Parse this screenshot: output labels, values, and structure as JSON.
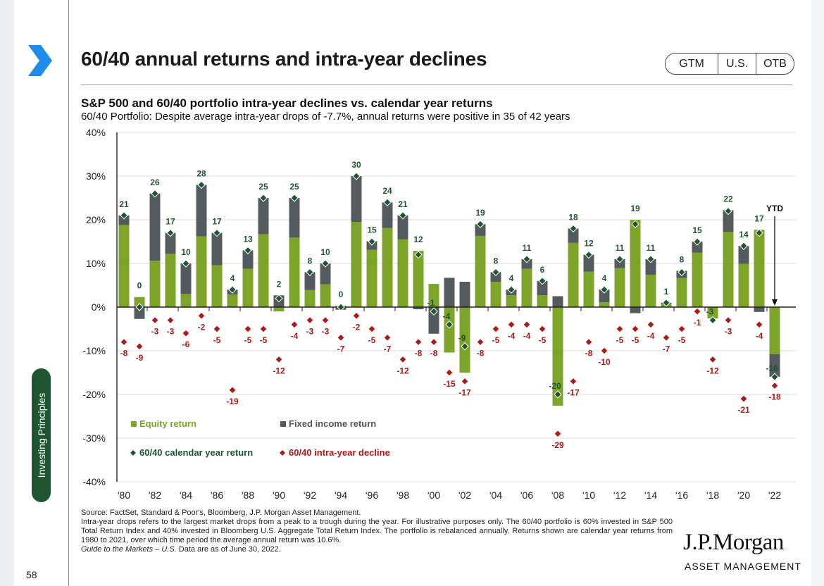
{
  "header": {
    "title": "60/40 annual returns and intra-year declines",
    "pills": [
      "GTM",
      "U.S.",
      "OTB"
    ]
  },
  "sidebar": {
    "tab_label": "Investing Principles",
    "page_number": "58"
  },
  "colors": {
    "equity": "#7ba428",
    "fixed_income": "#555a5e",
    "calendar": "#1e5631",
    "decline": "#b01818",
    "accent": "#1f8ceb"
  },
  "chart_data": {
    "type": "bar",
    "title": "S&P 500 and 60/40 portfolio intra-year declines vs. calendar year returns",
    "subtitle": "60/40 Portfolio: Despite average intra-year drops of -7.7%, annual returns were positive in 35 of 42 years",
    "ylim": [
      -40,
      40
    ],
    "yticks": [
      "-40%",
      "-30%",
      "-20%",
      "-10%",
      "0%",
      "10%",
      "20%",
      "30%",
      "40%"
    ],
    "xtick_labels": [
      "'80",
      "'82",
      "'84",
      "'86",
      "'88",
      "'90",
      "'92",
      "'94",
      "'96",
      "'98",
      "'00",
      "'02",
      "'04",
      "'06",
      "'08",
      "'10",
      "'12",
      "'14",
      "'16",
      "'18",
      "'20",
      "'22"
    ],
    "years": [
      1980,
      1981,
      1982,
      1983,
      1984,
      1985,
      1986,
      1987,
      1988,
      1989,
      1990,
      1991,
      1992,
      1993,
      1994,
      1995,
      1996,
      1997,
      1998,
      1999,
      2000,
      2001,
      2002,
      2003,
      2004,
      2005,
      2006,
      2007,
      2008,
      2009,
      2010,
      2011,
      2012,
      2013,
      2014,
      2015,
      2016,
      2017,
      2018,
      2019,
      2020,
      2021,
      2022
    ],
    "series": [
      {
        "name": "Equity return",
        "type": "bar",
        "values": [
          18.8,
          2.3,
          10.6,
          12.2,
          3.0,
          16.2,
          9.6,
          2.9,
          8.8,
          16.7,
          -1.0,
          15.9,
          3.9,
          5.2,
          0.3,
          19.5,
          13.1,
          18.1,
          15.5,
          12.9,
          5.3,
          -10.4,
          -15.0,
          16.3,
          5.8,
          2.7,
          8.8,
          2.7,
          -22.6,
          14.7,
          8.1,
          1.1,
          8.9,
          20.0,
          7.4,
          0.8,
          6.7,
          12.5,
          -2.6,
          17.2,
          9.9,
          17.7,
          -10.8
        ]
      },
      {
        "name": "Fixed income return",
        "type": "bar",
        "values": [
          2.2,
          -2.7,
          15.4,
          4.8,
          7.0,
          11.8,
          7.4,
          1.1,
          4.2,
          8.3,
          2.7,
          9.1,
          4.1,
          4.8,
          -0.6,
          10.5,
          2.0,
          5.9,
          5.5,
          -0.5,
          -6.1,
          6.7,
          5.8,
          2.7,
          2.2,
          1.3,
          2.2,
          3.3,
          2.5,
          3.3,
          3.9,
          2.9,
          2.1,
          -1.4,
          3.6,
          0.2,
          1.6,
          2.5,
          0.0,
          5.0,
          4.1,
          -1.1,
          -5.2
        ]
      },
      {
        "name": "60/40 calendar year return",
        "type": "scatter",
        "values": [
          21,
          0,
          26,
          17,
          10,
          28,
          17,
          4,
          13,
          25,
          2,
          25,
          8,
          10,
          0,
          30,
          15,
          24,
          21,
          12,
          -1,
          -4,
          -9,
          19,
          8,
          4,
          11,
          6,
          -20,
          18,
          12,
          4,
          11,
          19,
          11,
          1,
          8,
          15,
          -3,
          22,
          14,
          17,
          -16
        ]
      },
      {
        "name": "60/40 intra-year decline",
        "type": "scatter",
        "values": [
          -8,
          -9,
          -3,
          -3,
          -6,
          -2,
          -5,
          -19,
          -5,
          -5,
          -12,
          -4,
          -3,
          -3,
          -7,
          -2,
          -5,
          -7,
          -12,
          -8,
          -8,
          -15,
          -17,
          -8,
          -5,
          -4,
          -4,
          -5,
          -29,
          -17,
          -8,
          -10,
          -5,
          -5,
          -4,
          -7,
          -5,
          -1,
          -12,
          -3,
          -21,
          -4,
          -18
        ]
      }
    ],
    "legend": [
      "Equity return",
      "Fixed income return",
      "60/40 calendar year return",
      "60/40 intra-year decline"
    ],
    "legend_placement": "bottom-left",
    "annotation": "YTD",
    "grid": true
  },
  "footnotes": {
    "source": "Source: FactSet, Standard & Poor's, Bloomberg, J.P. Morgan Asset Management.",
    "body": "Intra-year drops refers to the largest market drops from a peak to a trough during the year. For illustrative purposes only. The 60/40 portfolio is 60% invested in S&P 500 Total Return Index and 40% invested in Bloomberg U.S. Aggregate Total Return Index. The portfolio is rebalanced annually. Returns shown are calendar year returns from 1980 to 2021, over which time period the average annual return was 10.6%.",
    "guide": "Guide to the Markets – U.S.",
    "date": " Data are as of June 30, 2022."
  },
  "logo": {
    "name": "J.P.Morgan",
    "sub": "ASSET MANAGEMENT"
  }
}
